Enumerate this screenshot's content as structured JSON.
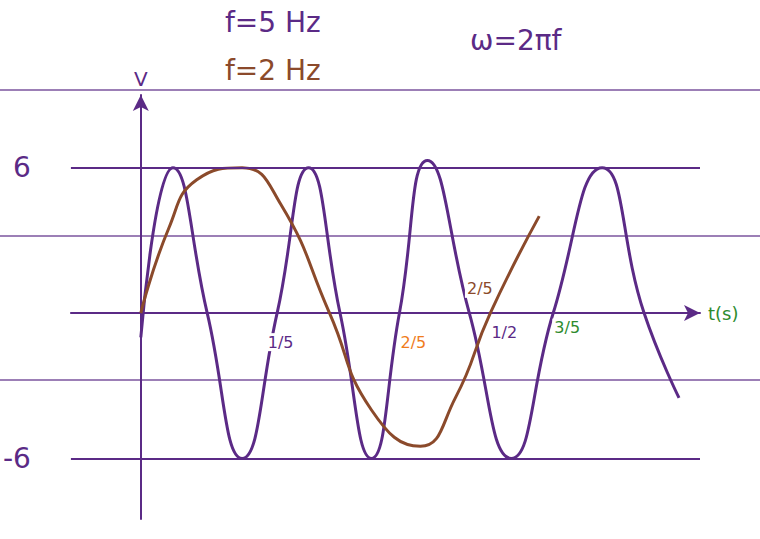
{
  "chart_data": {
    "type": "line",
    "x_label": "t(s)",
    "y_label": "V",
    "xlim": [
      -0.1,
      0.8
    ],
    "ylim": [
      -8.5,
      9
    ],
    "yticks": [
      -6,
      6
    ],
    "grid": true,
    "tick_labels": "y",
    "texts": [
      {
        "text": "f=5 Hz",
        "color": "#5b2a86"
      },
      {
        "text": "f=2 Hz",
        "color": "#8b4a2b"
      },
      {
        "text": "ω=2πf",
        "color": "#5b2a86"
      }
    ],
    "annotations": [
      {
        "text": "1/5",
        "x": 0.2,
        "y": -1.2,
        "color": "#5b2a86"
      },
      {
        "text": "2/5",
        "x": 0.39,
        "y": -1.2,
        "color": "#f07c1c"
      },
      {
        "text": "2/5",
        "x": 0.485,
        "y": 1.0,
        "color": "#8b4a2b"
      },
      {
        "text": "1/2",
        "x": 0.52,
        "y": -0.8,
        "color": "#5b2a86"
      },
      {
        "text": "3/5",
        "x": 0.61,
        "y": -0.6,
        "color": "#2e8b2e"
      }
    ],
    "series": [
      {
        "color": "#5b2a86",
        "x": [
          0,
          0.046,
          0.095,
          0.145,
          0.195,
          0.24,
          0.285,
          0.33,
          0.37,
          0.41,
          0.47,
          0.53,
          0.59,
          0.66,
          0.72,
          0.77
        ],
        "values": [
          -1,
          6,
          0,
          -6,
          0,
          6,
          0,
          -6,
          0,
          6.3,
          0,
          -6,
          0,
          6,
          0,
          -3.5
        ]
      },
      {
        "color": "#8b4a2b",
        "x": [
          0,
          0.04,
          0.08,
          0.145,
          0.2,
          0.27,
          0.33,
          0.4,
          0.45,
          0.5,
          0.57
        ],
        "values": [
          0,
          3.5,
          5.5,
          6,
          4.5,
          0,
          -4,
          -5.5,
          -3.5,
          0,
          4
        ]
      }
    ]
  }
}
